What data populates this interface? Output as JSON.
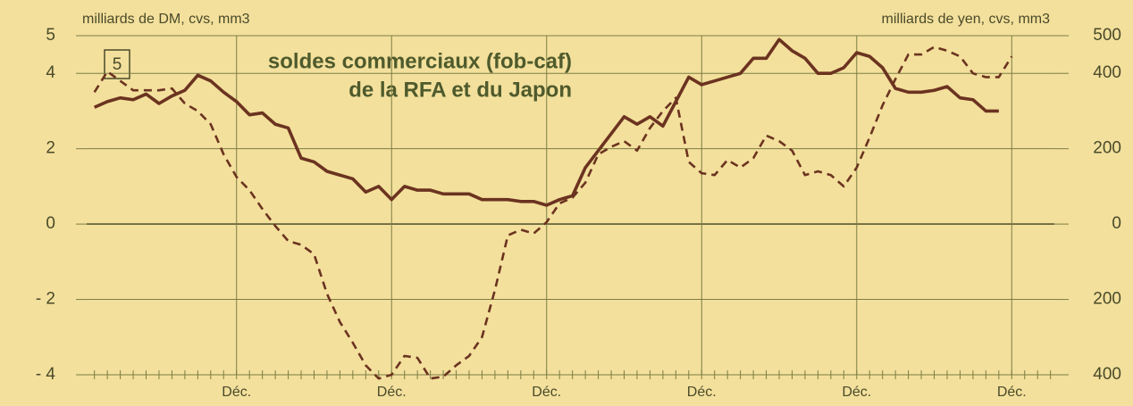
{
  "chart_data": {
    "type": "line",
    "number": "5",
    "title": [
      "soldes commerciaux (fob-caf)",
      "de la RFA et du Japon"
    ],
    "y_label": "milliards de DM, cvs, mm3",
    "y2_label": "milliards de yen, cvs, mm3",
    "x": [
      1,
      2,
      3,
      4,
      5,
      6,
      7,
      8,
      9,
      10,
      11,
      12,
      13,
      14,
      15,
      16,
      17,
      18,
      19,
      20,
      21,
      22,
      23,
      24,
      25,
      26,
      27,
      28,
      29,
      30,
      31,
      32,
      33,
      34,
      35,
      36,
      37,
      38,
      39,
      40,
      41,
      42,
      43,
      44,
      45,
      46,
      47,
      48,
      49,
      50,
      51,
      52,
      53,
      54,
      55,
      56,
      57,
      58,
      59,
      60,
      61,
      62,
      63,
      64,
      65,
      66,
      67,
      68,
      69,
      70,
      71,
      72
    ],
    "xlim": [
      0.4,
      75.3
    ],
    "xticks": [
      {
        "value": 12,
        "label": "Déc."
      },
      {
        "value": 24,
        "label": "Déc."
      },
      {
        "value": 36,
        "label": "Déc."
      },
      {
        "value": 48,
        "label": "Déc."
      },
      {
        "value": 60,
        "label": "Déc."
      },
      {
        "value": 72,
        "label": "Déc."
      }
    ],
    "ylim": [
      -4,
      5
    ],
    "yticks": [
      {
        "value": -4,
        "label": "- 4"
      },
      {
        "value": -2,
        "label": "- 2"
      },
      0,
      2,
      4,
      5
    ],
    "y2lim": [
      -400,
      500
    ],
    "y2ticks": [
      {
        "value": -400,
        "label": "400"
      },
      {
        "value": -200,
        "label": "200"
      },
      0,
      200,
      400,
      500
    ],
    "grid": true,
    "series": [
      {
        "color": "#6b3320",
        "style": "solid",
        "axis": "y",
        "values": [
          3.1,
          3.25,
          3.35,
          3.3,
          3.45,
          3.2,
          3.4,
          3.55,
          3.95,
          3.8,
          3.5,
          3.25,
          2.9,
          2.95,
          2.65,
          2.55,
          1.75,
          1.65,
          1.4,
          1.3,
          1.2,
          0.85,
          1.0,
          0.65,
          1.0,
          0.9,
          0.9,
          0.8,
          0.8,
          0.8,
          0.65,
          0.65,
          0.65,
          0.6,
          0.6,
          0.5,
          0.65,
          0.75,
          1.5,
          1.95,
          2.4,
          2.85,
          2.65,
          2.85,
          2.6,
          3.25,
          3.9,
          3.7,
          3.8,
          3.9,
          4.0,
          4.4,
          4.4,
          4.9,
          4.6,
          4.4,
          4.0,
          4.0,
          4.15,
          4.55,
          4.45,
          4.15,
          3.6,
          3.5,
          3.5,
          3.55,
          3.65,
          3.35,
          3.3,
          3.0,
          3.0,
          null
        ]
      },
      {
        "color": "#6b3320",
        "style": "dashed",
        "axis": "y2",
        "values": [
          350,
          405,
          380,
          355,
          355,
          355,
          360,
          320,
          300,
          265,
          185,
          125,
          90,
          40,
          -5,
          -45,
          -55,
          -80,
          -185,
          -260,
          -315,
          -375,
          -410,
          -400,
          -350,
          -355,
          -410,
          -405,
          -375,
          -350,
          -300,
          -175,
          -30,
          -15,
          -25,
          5,
          55,
          70,
          110,
          185,
          205,
          220,
          195,
          255,
          300,
          335,
          165,
          135,
          130,
          170,
          150,
          175,
          235,
          220,
          195,
          130,
          140,
          130,
          100,
          150,
          230,
          315,
          385,
          450,
          450,
          470,
          460,
          445,
          400,
          390,
          390,
          445
        ]
      }
    ]
  }
}
